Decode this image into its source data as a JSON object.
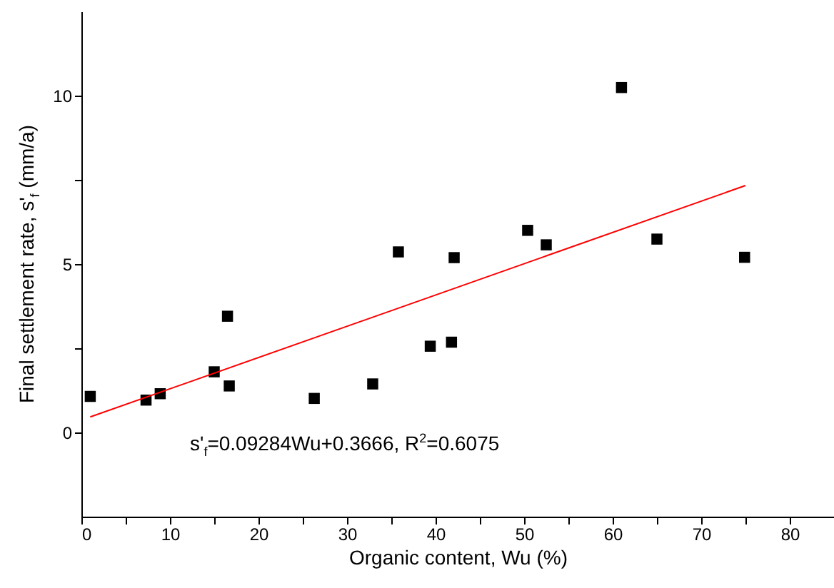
{
  "chart_data": {
    "type": "scatter",
    "xlabel": "Organic content, Wu (%)",
    "ylabel": "Final settlement rate, s'$_{f}$ (mm/a)",
    "annotations": [
      "s'$_{f}$=0.09284Wu+0.3666, R$^{2}$=0.6075"
    ],
    "marker": "square",
    "xlim": [
      0,
      85
    ],
    "xticks": [
      0,
      {
        "value": 5,
        "label": null
      },
      10,
      {
        "value": 15,
        "label": null
      },
      20,
      {
        "value": 25,
        "label": null
      },
      30,
      {
        "value": 35,
        "label": null
      },
      40,
      {
        "value": 45,
        "label": null
      },
      50,
      {
        "value": 55,
        "label": null
      },
      60,
      {
        "value": 65,
        "label": null
      },
      70,
      {
        "value": 75,
        "label": null
      },
      80
    ],
    "ylim": [
      -2.5,
      12.5
    ],
    "yticks": [
      0,
      {
        "value": 2.5,
        "label": null
      },
      5,
      {
        "value": 7.5,
        "label": null
      },
      10
    ],
    "series": [
      {
        "color": "#000000",
        "x": [
          1.0,
          7.3,
          8.9,
          15.0,
          16.5,
          16.7,
          26.3,
          32.9,
          35.8,
          39.4,
          41.8,
          42.1,
          50.4,
          52.5,
          61.0,
          65.0,
          74.9
        ],
        "values": [
          1.07,
          0.96,
          1.15,
          1.8,
          3.45,
          1.38,
          1.01,
          1.44,
          5.36,
          2.56,
          2.68,
          5.19,
          6.0,
          5.57,
          10.24,
          5.74,
          5.2
        ]
      },
      {
        "type": "line",
        "marker": "none",
        "color": "#ff0000",
        "x": [
          1.0,
          75.0
        ],
        "values": [
          0.46,
          7.33
        ]
      }
    ]
  }
}
